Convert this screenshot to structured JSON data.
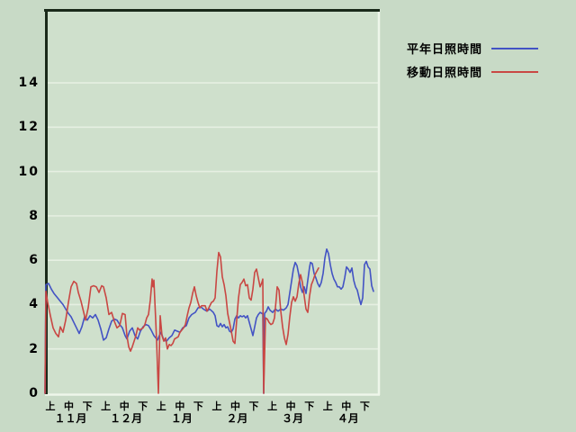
{
  "window": {
    "background": "#c8dac6"
  },
  "legend": {
    "items": [
      {
        "label": "平年日照時間",
        "color": "#4353c4"
      },
      {
        "label": "移動日照時間",
        "color": "#c94743"
      }
    ]
  },
  "chart_data": {
    "type": "line",
    "title": "",
    "xlabel": "",
    "ylabel": "",
    "grid": "on",
    "legend_position": "top-right",
    "y_ticks": [
      0,
      2,
      4,
      6,
      8,
      10,
      12,
      14
    ],
    "ylim": [
      0,
      17.3
    ],
    "x_periods": [
      "上",
      "中",
      "下"
    ],
    "months": [
      "１１月",
      "１２月",
      "１月",
      "２月",
      "３月",
      "４月"
    ],
    "x_encoding": "pixel column in source image (Nov 1 ≈ x50, ~2.06 px per day)",
    "colors": {
      "plot_bg": "#cfe0cc",
      "grid": "#e6efe2",
      "frame_dark": "#1a2a1a",
      "frame_light": "#eef6ea"
    },
    "series": [
      {
        "name": "平年日照時間",
        "color": "#4353c4",
        "points": [
          [
            50,
            0
          ],
          [
            51,
            4.9
          ],
          [
            54,
            4.95
          ],
          [
            57,
            4.7
          ],
          [
            60,
            4.5
          ],
          [
            64,
            4.3
          ],
          [
            67,
            4.15
          ],
          [
            70,
            4.0
          ],
          [
            73,
            3.8
          ],
          [
            76,
            3.6
          ],
          [
            79,
            3.45
          ],
          [
            82,
            3.2
          ],
          [
            85,
            2.95
          ],
          [
            88,
            2.7
          ],
          [
            91,
            3.0
          ],
          [
            94,
            3.45
          ],
          [
            97,
            3.3
          ],
          [
            100,
            3.5
          ],
          [
            103,
            3.4
          ],
          [
            106,
            3.55
          ],
          [
            109,
            3.3
          ],
          [
            112,
            2.9
          ],
          [
            115,
            2.4
          ],
          [
            118,
            2.5
          ],
          [
            121,
            2.9
          ],
          [
            124,
            3.25
          ],
          [
            127,
            3.35
          ],
          [
            130,
            3.3
          ],
          [
            133,
            3.1
          ],
          [
            136,
            2.95
          ],
          [
            139,
            2.6
          ],
          [
            141,
            2.45
          ],
          [
            144,
            2.8
          ],
          [
            147,
            2.95
          ],
          [
            150,
            2.6
          ],
          [
            153,
            2.45
          ],
          [
            156,
            2.8
          ],
          [
            159,
            3.0
          ],
          [
            162,
            3.1
          ],
          [
            165,
            3.05
          ],
          [
            168,
            2.85
          ],
          [
            171,
            2.6
          ],
          [
            175,
            2.4
          ],
          [
            177,
            2.6
          ],
          [
            179,
            2.75
          ],
          [
            182,
            2.4
          ],
          [
            185,
            2.35
          ],
          [
            188,
            2.5
          ],
          [
            191,
            2.6
          ],
          [
            194,
            2.85
          ],
          [
            197,
            2.8
          ],
          [
            200,
            2.75
          ],
          [
            203,
            2.95
          ],
          [
            207,
            3.05
          ],
          [
            210,
            3.4
          ],
          [
            213,
            3.55
          ],
          [
            217,
            3.65
          ],
          [
            220,
            3.85
          ],
          [
            223,
            3.9
          ],
          [
            226,
            3.8
          ],
          [
            230,
            3.7
          ],
          [
            233,
            3.8
          ],
          [
            237,
            3.65
          ],
          [
            239,
            3.5
          ],
          [
            241,
            3.05
          ],
          [
            243,
            3.0
          ],
          [
            245,
            3.15
          ],
          [
            247,
            3.0
          ],
          [
            249,
            3.1
          ],
          [
            251,
            2.95
          ],
          [
            253,
            3.0
          ],
          [
            255,
            2.8
          ],
          [
            257,
            2.75
          ],
          [
            259,
            2.9
          ],
          [
            261,
            3.35
          ],
          [
            263,
            3.5
          ],
          [
            265,
            3.4
          ],
          [
            267,
            3.5
          ],
          [
            269,
            3.45
          ],
          [
            271,
            3.5
          ],
          [
            273,
            3.4
          ],
          [
            275,
            3.5
          ],
          [
            277,
            3.2
          ],
          [
            279,
            2.9
          ],
          [
            281,
            2.6
          ],
          [
            283,
            3.0
          ],
          [
            285,
            3.4
          ],
          [
            287,
            3.55
          ],
          [
            289,
            3.65
          ],
          [
            291,
            3.6
          ],
          [
            292,
            3.6
          ],
          [
            293,
            0
          ],
          [
            294,
            3.6
          ],
          [
            296,
            3.7
          ],
          [
            298,
            3.9
          ],
          [
            300,
            3.75
          ],
          [
            303,
            3.65
          ],
          [
            306,
            3.8
          ],
          [
            309,
            3.7
          ],
          [
            312,
            3.8
          ],
          [
            315,
            3.75
          ],
          [
            318,
            3.85
          ],
          [
            320,
            4.0
          ],
          [
            323,
            4.8
          ],
          [
            326,
            5.6
          ],
          [
            328,
            5.9
          ],
          [
            330,
            5.75
          ],
          [
            332,
            5.35
          ],
          [
            334,
            4.8
          ],
          [
            336,
            4.55
          ],
          [
            338,
            4.8
          ],
          [
            340,
            4.5
          ],
          [
            342,
            5.1
          ],
          [
            344,
            5.7
          ],
          [
            345,
            5.9
          ],
          [
            347,
            5.85
          ],
          [
            349,
            5.4
          ],
          [
            351,
            5.2
          ],
          [
            353,
            4.95
          ],
          [
            355,
            4.8
          ],
          [
            357,
            5.0
          ],
          [
            359,
            5.4
          ],
          [
            361,
            6.1
          ],
          [
            363,
            6.5
          ],
          [
            365,
            6.3
          ],
          [
            367,
            5.8
          ],
          [
            369,
            5.4
          ],
          [
            371,
            5.15
          ],
          [
            373,
            5.0
          ],
          [
            375,
            4.8
          ],
          [
            377,
            4.8
          ],
          [
            379,
            4.7
          ],
          [
            381,
            4.8
          ],
          [
            383,
            5.2
          ],
          [
            385,
            5.7
          ],
          [
            387,
            5.6
          ],
          [
            389,
            5.45
          ],
          [
            391,
            5.65
          ],
          [
            393,
            5.1
          ],
          [
            395,
            4.8
          ],
          [
            397,
            4.65
          ],
          [
            399,
            4.3
          ],
          [
            401,
            4.0
          ],
          [
            403,
            4.3
          ],
          [
            405,
            5.8
          ],
          [
            407,
            5.95
          ],
          [
            409,
            5.7
          ],
          [
            411,
            5.6
          ],
          [
            413,
            4.85
          ],
          [
            415,
            4.6
          ]
        ]
      },
      {
        "name": "移動日照時間",
        "color": "#c94743",
        "points": [
          [
            50,
            0
          ],
          [
            51,
            4.6
          ],
          [
            53,
            4.1
          ],
          [
            56,
            3.5
          ],
          [
            59,
            2.95
          ],
          [
            62,
            2.7
          ],
          [
            65,
            2.55
          ],
          [
            67,
            3.0
          ],
          [
            70,
            2.75
          ],
          [
            73,
            3.3
          ],
          [
            76,
            4.1
          ],
          [
            79,
            4.8
          ],
          [
            82,
            5.05
          ],
          [
            85,
            4.95
          ],
          [
            87,
            4.55
          ],
          [
            90,
            4.15
          ],
          [
            93,
            3.65
          ],
          [
            95,
            3.3
          ],
          [
            98,
            3.85
          ],
          [
            101,
            4.8
          ],
          [
            104,
            4.85
          ],
          [
            107,
            4.8
          ],
          [
            110,
            4.55
          ],
          [
            113,
            4.85
          ],
          [
            115,
            4.8
          ],
          [
            118,
            4.3
          ],
          [
            121,
            3.55
          ],
          [
            124,
            3.65
          ],
          [
            127,
            3.25
          ],
          [
            130,
            2.95
          ],
          [
            133,
            3.05
          ],
          [
            136,
            3.6
          ],
          [
            139,
            3.55
          ],
          [
            141,
            2.6
          ],
          [
            143,
            2.1
          ],
          [
            145,
            1.9
          ],
          [
            147,
            2.1
          ],
          [
            149,
            2.35
          ],
          [
            151,
            2.6
          ],
          [
            153,
            2.95
          ],
          [
            155,
            2.85
          ],
          [
            157,
            2.9
          ],
          [
            159,
            2.95
          ],
          [
            161,
            3.1
          ],
          [
            163,
            3.4
          ],
          [
            165,
            3.55
          ],
          [
            167,
            4.2
          ],
          [
            169,
            5.15
          ],
          [
            170,
            4.8
          ],
          [
            171,
            5.1
          ],
          [
            172,
            4.2
          ],
          [
            173,
            3.3
          ],
          [
            174,
            2.35
          ],
          [
            176,
            0
          ],
          [
            178,
            3.5
          ],
          [
            180,
            2.6
          ],
          [
            182,
            2.35
          ],
          [
            184,
            2.5
          ],
          [
            186,
            2.0
          ],
          [
            188,
            2.2
          ],
          [
            190,
            2.15
          ],
          [
            192,
            2.25
          ],
          [
            194,
            2.45
          ],
          [
            196,
            2.5
          ],
          [
            198,
            2.55
          ],
          [
            200,
            2.75
          ],
          [
            202,
            2.85
          ],
          [
            204,
            2.95
          ],
          [
            206,
            3.1
          ],
          [
            208,
            3.5
          ],
          [
            210,
            3.85
          ],
          [
            212,
            4.1
          ],
          [
            214,
            4.5
          ],
          [
            216,
            4.8
          ],
          [
            218,
            4.4
          ],
          [
            220,
            4.1
          ],
          [
            222,
            3.85
          ],
          [
            224,
            3.95
          ],
          [
            226,
            3.95
          ],
          [
            228,
            3.95
          ],
          [
            230,
            3.7
          ],
          [
            232,
            3.85
          ],
          [
            235,
            4.1
          ],
          [
            237,
            4.15
          ],
          [
            239,
            4.3
          ],
          [
            241,
            5.5
          ],
          [
            243,
            6.35
          ],
          [
            245,
            6.15
          ],
          [
            247,
            5.25
          ],
          [
            249,
            4.9
          ],
          [
            251,
            4.4
          ],
          [
            253,
            3.6
          ],
          [
            255,
            3.2
          ],
          [
            257,
            2.8
          ],
          [
            259,
            2.35
          ],
          [
            261,
            2.25
          ],
          [
            263,
            3.3
          ],
          [
            265,
            4.3
          ],
          [
            267,
            4.9
          ],
          [
            269,
            5.0
          ],
          [
            271,
            5.15
          ],
          [
            273,
            4.85
          ],
          [
            275,
            4.9
          ],
          [
            277,
            4.3
          ],
          [
            279,
            4.2
          ],
          [
            281,
            4.7
          ],
          [
            283,
            5.45
          ],
          [
            285,
            5.6
          ],
          [
            287,
            5.2
          ],
          [
            289,
            4.8
          ],
          [
            291,
            5.0
          ],
          [
            292,
            5.15
          ],
          [
            293,
            0
          ],
          [
            295,
            3.4
          ],
          [
            297,
            3.35
          ],
          [
            299,
            3.2
          ],
          [
            301,
            3.1
          ],
          [
            303,
            3.15
          ],
          [
            305,
            3.4
          ],
          [
            307,
            4.3
          ],
          [
            308,
            4.8
          ],
          [
            310,
            4.65
          ],
          [
            312,
            3.7
          ],
          [
            314,
            3.0
          ],
          [
            316,
            2.5
          ],
          [
            318,
            2.2
          ],
          [
            320,
            2.65
          ],
          [
            322,
            3.45
          ],
          [
            324,
            4.1
          ],
          [
            326,
            4.35
          ],
          [
            328,
            4.15
          ],
          [
            330,
            4.35
          ],
          [
            332,
            4.95
          ],
          [
            334,
            5.35
          ],
          [
            336,
            5.0
          ],
          [
            338,
            4.4
          ],
          [
            340,
            3.8
          ],
          [
            342,
            3.65
          ],
          [
            344,
            4.4
          ],
          [
            346,
            4.9
          ],
          [
            348,
            5.1
          ],
          [
            350,
            5.35
          ],
          [
            352,
            5.5
          ],
          [
            354,
            5.65
          ]
        ]
      }
    ]
  }
}
